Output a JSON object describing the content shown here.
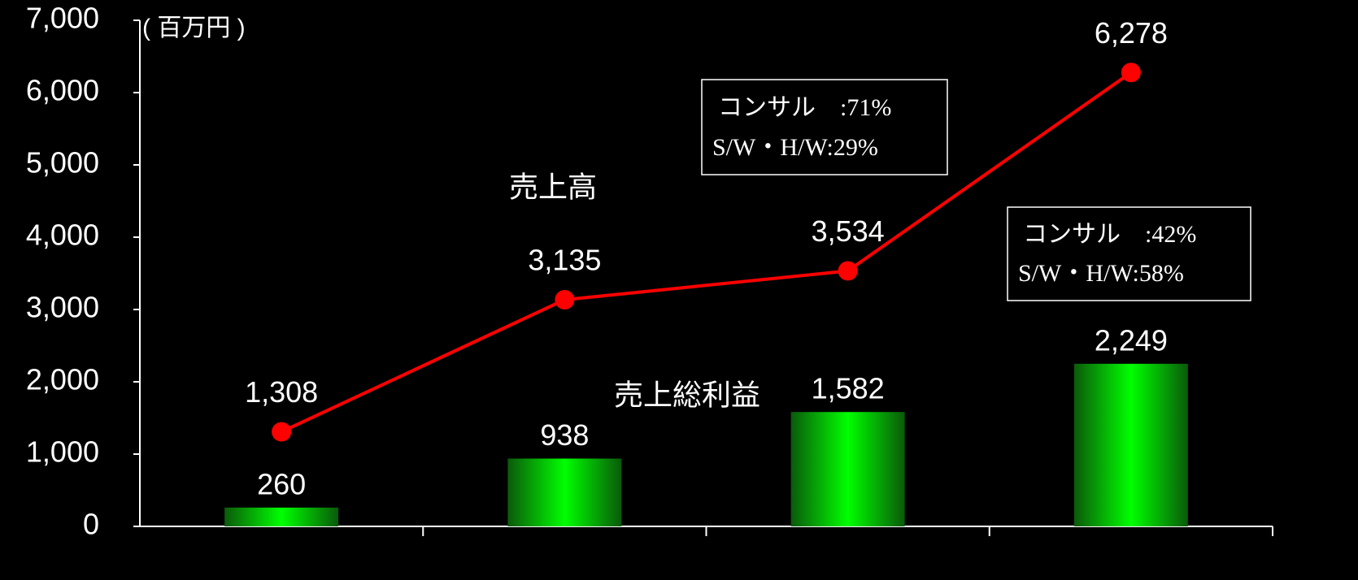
{
  "chart_data": {
    "type": "combo",
    "unit_label": "( 百万円 )",
    "categories": [
      null,
      null,
      null,
      null
    ],
    "series": [
      {
        "name": "売上総利益",
        "type": "bar",
        "color": "#00ff00",
        "values": [
          260,
          938,
          1582,
          2249
        ],
        "value_labels": [
          "260",
          "938",
          "1,582",
          "2,249"
        ]
      },
      {
        "name": "売上高",
        "type": "line",
        "color": "#ff0000",
        "values": [
          1308,
          3135,
          3534,
          6278
        ],
        "value_labels": [
          "1,308",
          "3,135",
          "3,534",
          "6,278"
        ]
      }
    ],
    "ylim": [
      0,
      7000
    ],
    "yticks": [
      0,
      {
        "value": 1000,
        "label": "1,000"
      },
      {
        "value": 2000,
        "label": "2,000"
      },
      {
        "value": 3000,
        "label": "3,000"
      },
      {
        "value": 4000,
        "label": "4,000"
      },
      {
        "value": 5000,
        "label": "5,000"
      },
      {
        "value": 6000,
        "label": "6,000"
      },
      {
        "value": 7000,
        "label": "7,000"
      }
    ],
    "annotations": [
      {
        "lines": [
          "コンサル　:71%",
          "S/W・H/W:29%"
        ]
      },
      {
        "lines": [
          "コンサル　:42%",
          "S/W・H/W:58%"
        ]
      }
    ]
  }
}
